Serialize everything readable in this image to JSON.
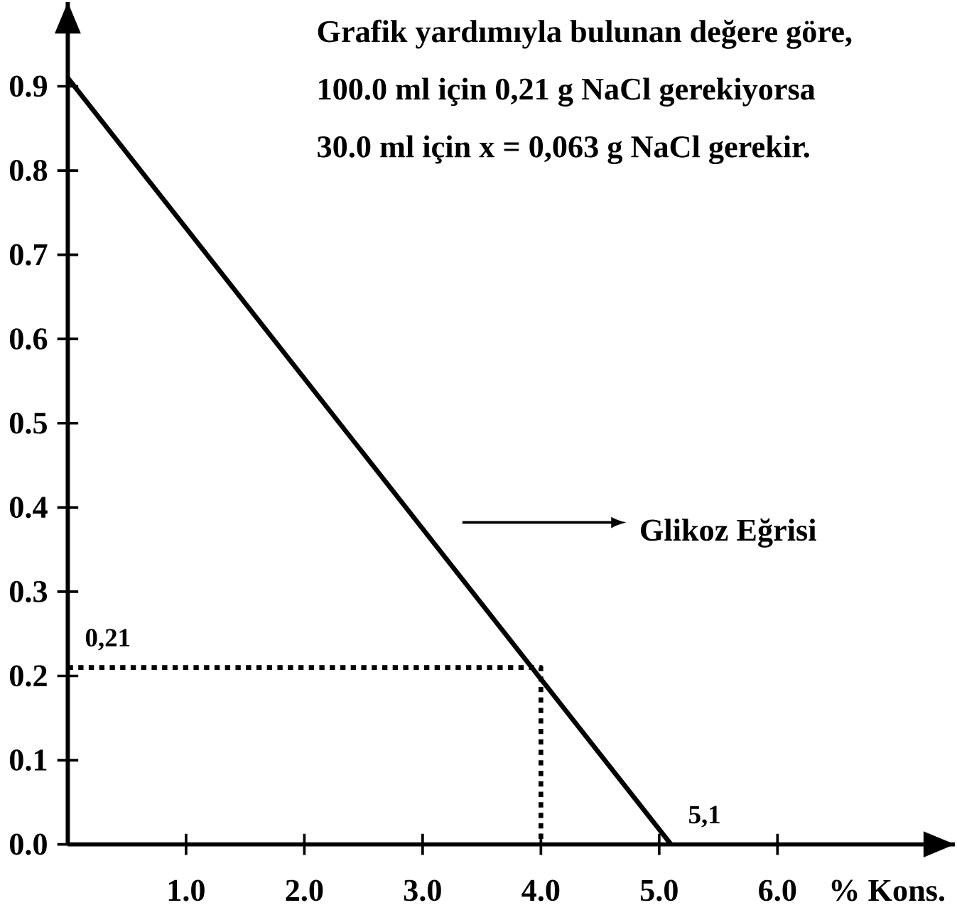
{
  "chart_data": {
    "type": "line",
    "xlabel": "% Kons.",
    "annotations": [
      "Grafik yardımıyla bulunan değere göre,",
      "100.0 ml  için      0,21 g NaCl gerekiyorsa",
      "30.0 ml  için      x = 0,063 g NaCl gerekir.",
      {
        "text": "0,21",
        "x": 0,
        "y": 0.21
      },
      {
        "text": "5,1",
        "x": 5.1,
        "y": 0
      }
    ],
    "series": [
      {
        "name": "Glikoz Eğrisi",
        "color": "#000000",
        "x": [
          0,
          5.1
        ],
        "values": [
          0.91,
          0
        ]
      },
      {
        "color": "#000000",
        "x": [
          0,
          4.0,
          4.0
        ],
        "values": [
          0.21,
          0.21,
          0
        ],
        "line_style": "dotted"
      }
    ],
    "xlim": [
      0,
      7.5
    ],
    "ylim": [
      0,
      1.0
    ],
    "xticks": [
      {
        "value": 1,
        "label": "1.0"
      },
      {
        "value": 2,
        "label": "2.0"
      },
      {
        "value": 3,
        "label": "3.0"
      },
      {
        "value": 4,
        "label": "4.0"
      },
      {
        "value": 5,
        "label": "5.0"
      },
      {
        "value": 6,
        "label": "6.0"
      }
    ],
    "yticks": [
      {
        "value": 0,
        "label": "0.0"
      },
      {
        "value": 0.1,
        "label": "0.1"
      },
      {
        "value": 0.2,
        "label": "0.2"
      },
      {
        "value": 0.3,
        "label": "0.3"
      },
      {
        "value": 0.4,
        "label": "0.4"
      },
      {
        "value": 0.5,
        "label": "0.5"
      },
      {
        "value": 0.6,
        "label": "0.6"
      },
      {
        "value": 0.7,
        "label": "0.7"
      },
      {
        "value": 0.8,
        "label": "0.8"
      },
      {
        "value": 0.9,
        "label": "0.9"
      }
    ],
    "grid": false,
    "legend": "right",
    "marker": "none",
    "line_style": "solid"
  }
}
